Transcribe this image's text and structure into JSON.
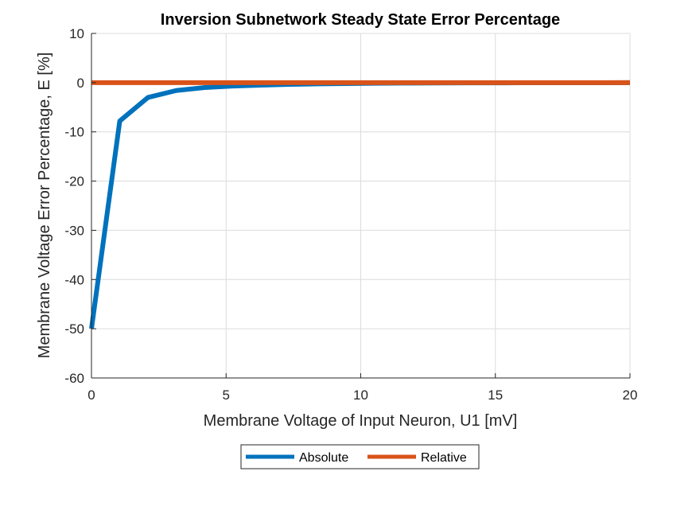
{
  "chart_data": {
    "type": "line",
    "title": "Inversion Subnetwork Steady State Error Percentage",
    "xlabel": "Membrane Voltage of Input Neuron, U1 [mV]",
    "ylabel": "Membrane Voltage Error Percentage, E [%]",
    "xlim": [
      0,
      20
    ],
    "ylim": [
      -60,
      10
    ],
    "xticks": [
      0,
      5,
      10,
      15,
      20
    ],
    "yticks": [
      10,
      0,
      -10,
      -20,
      -30,
      -40,
      -50,
      -60
    ],
    "grid": true,
    "legend_position": "bottom-outside",
    "series": [
      {
        "name": "Absolute",
        "color": "#0072BD",
        "x": [
          0,
          1.05,
          2.1,
          3.15,
          4.2,
          5.25,
          6.3,
          7.35,
          8.4,
          9.45,
          10.5,
          12,
          14,
          16,
          18,
          20
        ],
        "y": [
          -50,
          -7.8,
          -3.0,
          -1.6,
          -1.0,
          -0.7,
          -0.5,
          -0.35,
          -0.25,
          -0.18,
          -0.12,
          -0.08,
          -0.05,
          -0.03,
          -0.02,
          -0.01
        ]
      },
      {
        "name": "Relative",
        "color": "#D95319",
        "x": [
          0,
          20
        ],
        "y": [
          0,
          0
        ]
      }
    ]
  }
}
